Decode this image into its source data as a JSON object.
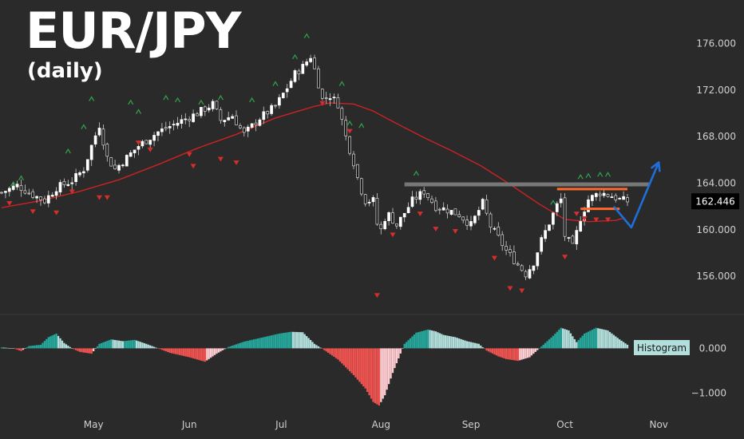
{
  "chart_data": {
    "type": "candlestick",
    "title": "EUR/JPY",
    "subtitle": "(daily)",
    "price_axis": {
      "ticks": [
        "176.000",
        "172.000",
        "168.000",
        "164.000",
        "160.000",
        "156.000"
      ],
      "range": [
        153.0,
        178.5
      ]
    },
    "last_price": "162.446",
    "histogram": {
      "label": "Histogram",
      "ticks": [
        "0.000",
        "−1.000"
      ],
      "range": [
        -1.35,
        0.65
      ]
    },
    "x_axis": {
      "labels": [
        "May",
        "Jun",
        "Jul",
        "Aug",
        "Sep",
        "Oct",
        "Nov"
      ]
    },
    "colors": {
      "background": "#2a2a2a",
      "up": "#ffffff",
      "down": "#1a1a1a",
      "ma": "#cc2222",
      "arrow_up": "#2e9e4a",
      "arrow_down": "#d32f2f",
      "resistance": "#777777",
      "range_lines": "#ff6a2a",
      "projection": "#1e6fd9",
      "hist_up": "#26a69a",
      "hist_up_weak": "#b2dfdb",
      "hist_down": "#ef5350",
      "hist_down_weak": "#ffcdd2"
    },
    "anchors": [
      [
        0,
        163.2
      ],
      [
        8,
        163.8
      ],
      [
        16,
        163.0
      ],
      [
        22,
        162.5
      ],
      [
        28,
        163.6
      ],
      [
        36,
        164.2
      ],
      [
        42,
        165.2
      ],
      [
        46,
        167.2
      ],
      [
        50,
        169.0
      ],
      [
        54,
        166.2
      ],
      [
        58,
        165.2
      ],
      [
        64,
        166.2
      ],
      [
        70,
        167.2
      ],
      [
        80,
        168.4
      ],
      [
        90,
        169.2
      ],
      [
        100,
        170.0
      ],
      [
        108,
        170.8
      ],
      [
        112,
        169.4
      ],
      [
        118,
        169.8
      ],
      [
        124,
        168.2
      ],
      [
        132,
        169.6
      ],
      [
        140,
        170.6
      ],
      [
        146,
        172.2
      ],
      [
        150,
        173.4
      ],
      [
        154,
        174.0
      ],
      [
        158,
        174.9
      ],
      [
        161,
        173.2
      ],
      [
        164,
        171.2
      ],
      [
        168,
        171.5
      ],
      [
        172,
        170.8
      ],
      [
        176,
        168.0
      ],
      [
        180,
        165.8
      ],
      [
        183,
        163.8
      ],
      [
        186,
        162.5
      ],
      [
        190,
        162.5
      ],
      [
        193,
        159.5
      ],
      [
        197,
        161.5
      ],
      [
        202,
        160.4
      ],
      [
        210,
        162.5
      ],
      [
        216,
        163.3
      ],
      [
        222,
        162.0
      ],
      [
        228,
        161.7
      ],
      [
        234,
        161.3
      ],
      [
        240,
        160.4
      ],
      [
        246,
        162.3
      ],
      [
        250,
        160.3
      ],
      [
        254,
        159.3
      ],
      [
        258,
        158.2
      ],
      [
        262,
        157.4
      ],
      [
        268,
        156.2
      ],
      [
        272,
        157.2
      ],
      [
        276,
        159.1
      ],
      [
        280,
        160.6
      ],
      [
        284,
        162.1
      ],
      [
        286,
        162.6
      ],
      [
        288,
        159.5
      ],
      [
        292,
        158.5
      ],
      [
        296,
        161.0
      ],
      [
        300,
        162.6
      ],
      [
        306,
        163.2
      ],
      [
        312,
        162.9
      ],
      [
        316,
        162.6
      ],
      [
        320,
        162.45
      ]
    ],
    "ma": [
      [
        0,
        161.9
      ],
      [
        20,
        162.5
      ],
      [
        40,
        163.3
      ],
      [
        60,
        164.3
      ],
      [
        80,
        165.6
      ],
      [
        100,
        167.0
      ],
      [
        120,
        168.2
      ],
      [
        140,
        169.6
      ],
      [
        160,
        170.6
      ],
      [
        168,
        170.9
      ],
      [
        180,
        170.8
      ],
      [
        190,
        170.2
      ],
      [
        200,
        169.3
      ],
      [
        215,
        168.0
      ],
      [
        230,
        166.8
      ],
      [
        245,
        165.5
      ],
      [
        260,
        163.9
      ],
      [
        275,
        162.2
      ],
      [
        288,
        160.9
      ],
      [
        300,
        160.7
      ],
      [
        314,
        160.8
      ],
      [
        318,
        161.0
      ]
    ],
    "hist_anchors": [
      [
        0,
        0.02
      ],
      [
        6,
        0.0
      ],
      [
        10,
        -0.06
      ],
      [
        14,
        0.05
      ],
      [
        20,
        0.08
      ],
      [
        24,
        0.25
      ],
      [
        28,
        0.33
      ],
      [
        32,
        0.12
      ],
      [
        36,
        0.0
      ],
      [
        40,
        -0.08
      ],
      [
        46,
        -0.12
      ],
      [
        50,
        0.1
      ],
      [
        56,
        0.2
      ],
      [
        62,
        0.16
      ],
      [
        68,
        0.19
      ],
      [
        74,
        0.1
      ],
      [
        80,
        0.0
      ],
      [
        86,
        -0.1
      ],
      [
        96,
        -0.2
      ],
      [
        104,
        -0.3
      ],
      [
        110,
        -0.12
      ],
      [
        116,
        0.03
      ],
      [
        124,
        0.15
      ],
      [
        134,
        0.25
      ],
      [
        142,
        0.33
      ],
      [
        148,
        0.37
      ],
      [
        154,
        0.36
      ],
      [
        160,
        0.1
      ],
      [
        164,
        -0.01
      ],
      [
        172,
        -0.25
      ],
      [
        180,
        -0.6
      ],
      [
        186,
        -0.9
      ],
      [
        190,
        -1.2
      ],
      [
        193,
        -1.28
      ],
      [
        196,
        -1.05
      ],
      [
        200,
        -0.55
      ],
      [
        206,
        0.1
      ],
      [
        212,
        0.35
      ],
      [
        218,
        0.42
      ],
      [
        222,
        0.38
      ],
      [
        226,
        0.3
      ],
      [
        232,
        0.25
      ],
      [
        238,
        0.16
      ],
      [
        244,
        0.1
      ],
      [
        248,
        -0.05
      ],
      [
        254,
        -0.18
      ],
      [
        258,
        -0.24
      ],
      [
        264,
        -0.28
      ],
      [
        270,
        -0.2
      ],
      [
        274,
        -0.04
      ],
      [
        278,
        0.12
      ],
      [
        282,
        0.28
      ],
      [
        286,
        0.46
      ],
      [
        290,
        0.4
      ],
      [
        294,
        0.14
      ],
      [
        298,
        0.33
      ],
      [
        304,
        0.46
      ],
      [
        310,
        0.4
      ],
      [
        316,
        0.2
      ],
      [
        320,
        0.08
      ]
    ],
    "up_arrows": [
      [
        6,
        163.9
      ],
      [
        10,
        164.4
      ],
      [
        34,
        166.7
      ],
      [
        42,
        168.8
      ],
      [
        46,
        171.2
      ],
      [
        66,
        170.9
      ],
      [
        70,
        170.1
      ],
      [
        84,
        171.3
      ],
      [
        90,
        171.1
      ],
      [
        102,
        170.9
      ],
      [
        112,
        171.3
      ],
      [
        128,
        171.1
      ],
      [
        140,
        172.5
      ],
      [
        150,
        174.8
      ],
      [
        156,
        176.6
      ],
      [
        174,
        172.5
      ],
      [
        178,
        169.1
      ],
      [
        184,
        168.9
      ],
      [
        212,
        164.8
      ],
      [
        282,
        162.3
      ],
      [
        296,
        164.5
      ],
      [
        300,
        164.6
      ],
      [
        306,
        164.7
      ],
      [
        310,
        164.7
      ]
    ],
    "down_arrows": [
      [
        4,
        162.3
      ],
      [
        16,
        161.6
      ],
      [
        28,
        161.5
      ],
      [
        36,
        163.3
      ],
      [
        50,
        162.8
      ],
      [
        54,
        162.8
      ],
      [
        70,
        167.5
      ],
      [
        76,
        166.9
      ],
      [
        96,
        166.5
      ],
      [
        98,
        165.5
      ],
      [
        112,
        166.1
      ],
      [
        120,
        165.8
      ],
      [
        164,
        170.9
      ],
      [
        178,
        168.5
      ],
      [
        192,
        154.4
      ],
      [
        200,
        159.6
      ],
      [
        214,
        161.4
      ],
      [
        222,
        160.1
      ],
      [
        232,
        159.9
      ],
      [
        252,
        157.6
      ],
      [
        260,
        155.0
      ],
      [
        266,
        154.8
      ],
      [
        288,
        157.7
      ],
      [
        294,
        161.4
      ],
      [
        298,
        161.0
      ],
      [
        304,
        160.9
      ],
      [
        310,
        160.9
      ]
    ],
    "annotations": {
      "resistance": {
        "x1": 206,
        "x2": 331,
        "y": 163.9
      },
      "range_top": {
        "x1": 284,
        "x2": 320,
        "y": 163.5
      },
      "range_bottom": {
        "x1": 296,
        "x2": 316,
        "y": 161.8
      },
      "projection": [
        [
          313,
          162.0
        ],
        [
          322,
          160.2
        ],
        [
          336,
          165.8
        ]
      ]
    }
  }
}
